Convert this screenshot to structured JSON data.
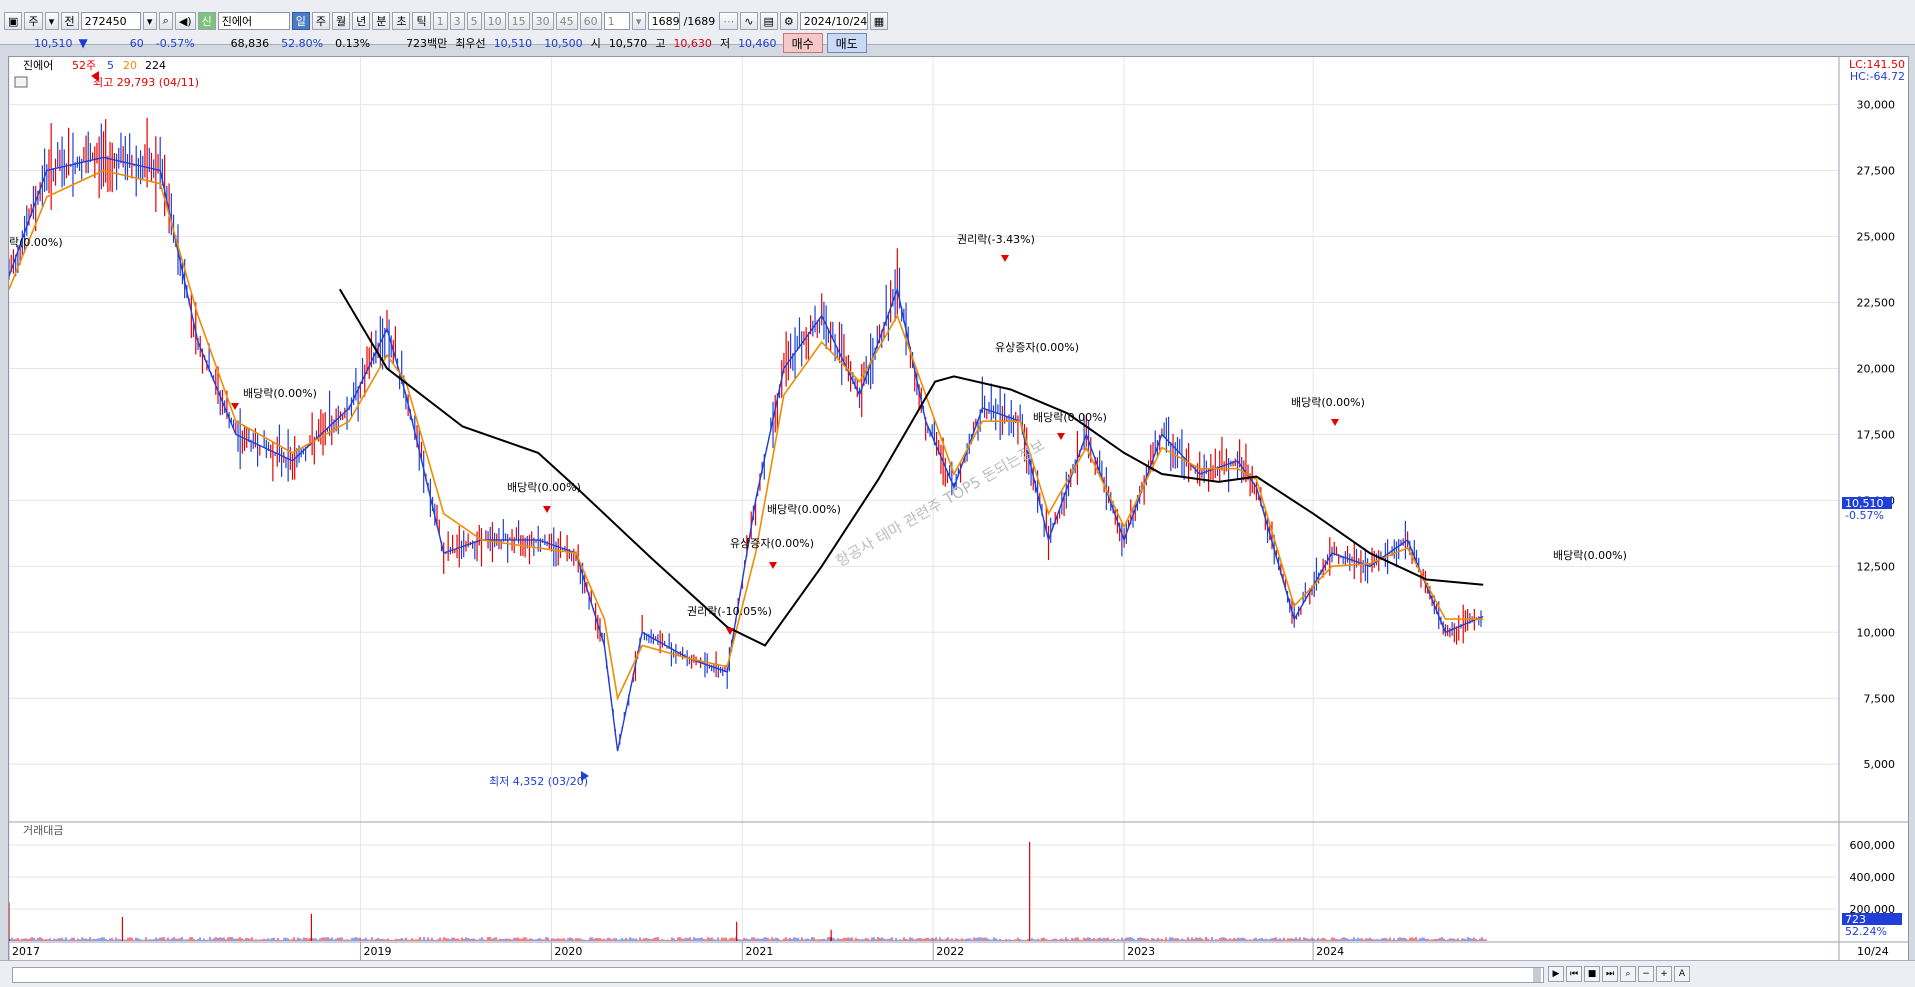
{
  "toolbar": {
    "period_short": "주",
    "prev_label": "전",
    "code": "272450",
    "badge": "신",
    "name": "진에어",
    "periods": [
      "일",
      "주",
      "월",
      "년",
      "분",
      "초",
      "틱"
    ],
    "active_period": "일",
    "intervals": [
      "1",
      "3",
      "5",
      "10",
      "15",
      "30",
      "45",
      "60"
    ],
    "count_value": "1",
    "page_count": "1689",
    "page_total": "/1689",
    "date": "2024/10/24"
  },
  "quote": {
    "price": "10,510",
    "arrow": "▼",
    "change": "60",
    "change_pct": "-0.57%",
    "volume": "68,836",
    "vol_ratio": "52.80%",
    "turnover": "0.13%",
    "amount": "723백만",
    "best_label": "최우선",
    "best_ask": "10,510",
    "best_bid": "10,500",
    "open_label": "시",
    "open": "10,570",
    "high_label": "고",
    "high": "10,630",
    "low_label": "저",
    "low": "10,460",
    "buy_label": "매수",
    "sell_label": "매도"
  },
  "chart_data": [
    {
      "type": "line",
      "legend": {
        "name": "진에어",
        "items": [
          "52주",
          "5",
          "20",
          "224"
        ],
        "colors": [
          "#e30000",
          "#1f3fd8",
          "#f08c00",
          "#000000"
        ]
      },
      "x_ticks": [
        "2017",
        "2019",
        "2020",
        "2021",
        "2022",
        "2023",
        "2024"
      ],
      "x_end_label": "10/24",
      "y_ticks": [
        "30,000",
        "27,500",
        "25,000",
        "22,500",
        "20,000",
        "17,500",
        "15,000",
        "12,500",
        "10,000",
        "7,500",
        "5,000"
      ],
      "ylim": [
        3000,
        31500
      ],
      "corner_labels": [
        "LC:141.50",
        "HC:-64.72"
      ],
      "last_price_label": "10,510",
      "last_change_label": "-0.57%",
      "series": [
        {
          "name": "5",
          "x": [
            2017.0,
            2017.2,
            2017.5,
            2017.8,
            2018.0,
            2018.2,
            2018.5,
            2018.8,
            2019.0,
            2019.1,
            2019.3,
            2019.5,
            2019.8,
            2020.0,
            2020.15,
            2020.22,
            2020.35,
            2020.6,
            2020.8,
            2020.95,
            2021.1,
            2021.3,
            2021.5,
            2021.7,
            2021.85,
            2022.0,
            2022.15,
            2022.35,
            2022.5,
            2022.7,
            2022.9,
            2023.1,
            2023.3,
            2023.5,
            2023.6,
            2023.8,
            2024.0,
            2024.2,
            2024.4,
            2024.6,
            2024.8
          ],
          "values": [
            23500,
            27500,
            28000,
            27500,
            21000,
            17500,
            16500,
            18500,
            21500,
            19000,
            13000,
            13500,
            13500,
            13000,
            9500,
            5500,
            10000,
            9000,
            8500,
            15000,
            20000,
            22000,
            19000,
            23000,
            18000,
            15500,
            18500,
            18000,
            13500,
            17500,
            13500,
            17500,
            16000,
            16500,
            15500,
            10500,
            13000,
            12500,
            13500,
            10000,
            10600
          ]
        },
        {
          "name": "20",
          "x": [
            2017.0,
            2017.2,
            2017.5,
            2017.8,
            2018.0,
            2018.2,
            2018.5,
            2018.8,
            2019.0,
            2019.1,
            2019.3,
            2019.5,
            2019.8,
            2020.0,
            2020.15,
            2020.22,
            2020.35,
            2020.6,
            2020.8,
            2020.95,
            2021.1,
            2021.3,
            2021.5,
            2021.7,
            2021.85,
            2022.0,
            2022.15,
            2022.35,
            2022.5,
            2022.7,
            2022.9,
            2023.1,
            2023.3,
            2023.5,
            2023.6,
            2023.8,
            2024.0,
            2024.2,
            2024.4,
            2024.6,
            2024.8
          ],
          "values": [
            23000,
            26500,
            27500,
            27000,
            22000,
            18000,
            16800,
            18000,
            20500,
            19500,
            14500,
            13500,
            13200,
            13000,
            10500,
            7500,
            9500,
            9000,
            8700,
            13000,
            19000,
            21000,
            19500,
            22000,
            19000,
            16000,
            18000,
            18000,
            14500,
            17000,
            14000,
            17000,
            16200,
            16200,
            15800,
            11000,
            12500,
            12600,
            13200,
            10500,
            10500
          ]
        },
        {
          "name": "224",
          "x": [
            2018.75,
            2019.0,
            2019.4,
            2019.8,
            2020.0,
            2020.4,
            2020.8,
            2021.0,
            2021.3,
            2021.6,
            2021.9,
            2022.0,
            2022.3,
            2022.6,
            2022.9,
            2023.1,
            2023.4,
            2023.6,
            2023.9,
            2024.2,
            2024.5,
            2024.8
          ],
          "values": [
            23000,
            20000,
            17800,
            16800,
            15500,
            12800,
            10200,
            9500,
            12500,
            15800,
            19500,
            19700,
            19200,
            18300,
            16800,
            16000,
            15700,
            15900,
            14500,
            13000,
            12000,
            11800
          ]
        }
      ],
      "annotations": [
        "최고 29,793 (04/11)",
        "최저 4,352 (03/20)",
        "락(0.00%)",
        "배당락(0.00%)",
        "배당락(0.00%)",
        "권리락(-10.05%)",
        "유상증자(0.00%)",
        "배당락(0.00%)",
        "권리락(-3.43%)",
        "유상증자(0.00%)",
        "배당락(0.00%)",
        "배당락(0.00%)",
        "배당락(0.00%)"
      ],
      "watermark": "항공사 테마 관련주 TOP5 돈되는정보"
    },
    {
      "type": "bar",
      "title": "거래대금",
      "y_ticks": [
        "600,000",
        "400,000",
        "200,000"
      ],
      "ylim": [
        0,
        650000
      ],
      "last_value_label": "723",
      "last_pct_label": "52.24%",
      "spikes": [
        {
          "x": 2017.0,
          "value": 240000
        },
        {
          "x": 2017.6,
          "value": 150000
        },
        {
          "x": 2018.6,
          "value": 170000
        },
        {
          "x": 2020.85,
          "value": 120000
        },
        {
          "x": 2021.35,
          "value": 70000
        },
        {
          "x": 2022.4,
          "value": 620000
        }
      ]
    }
  ]
}
